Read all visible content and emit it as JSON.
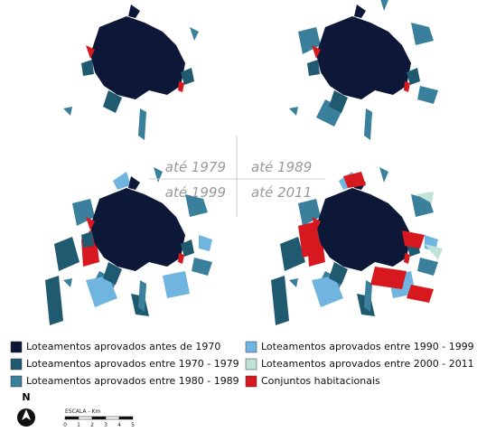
{
  "panels": [
    {
      "label": "até 1979"
    },
    {
      "label": "até 1989"
    },
    {
      "label": "até 1999"
    },
    {
      "label": "até 2011"
    }
  ],
  "legend": {
    "items": [
      {
        "label": "Loteamentos aprovados antes de 1970",
        "color": "#0d1838"
      },
      {
        "label": "Loteamentos aprovados entre 1970 - 1979",
        "color": "#1f5a70"
      },
      {
        "label": "Loteamentos aprovados entre 1980 - 1989",
        "color": "#3a7f9b"
      },
      {
        "label": "Loteamentos aprovados entre 1990 - 1999",
        "color": "#6fb5e0"
      },
      {
        "label": "Loteamentos aprovados entre 2000 - 2011",
        "color": "#bfe3d8"
      },
      {
        "label": "Conjuntos habitacionais",
        "color": "#d7191f"
      }
    ]
  },
  "north": "N",
  "scale": {
    "title": "ESCALA - Km",
    "ticks": [
      0,
      1,
      2,
      3,
      4,
      5
    ]
  }
}
